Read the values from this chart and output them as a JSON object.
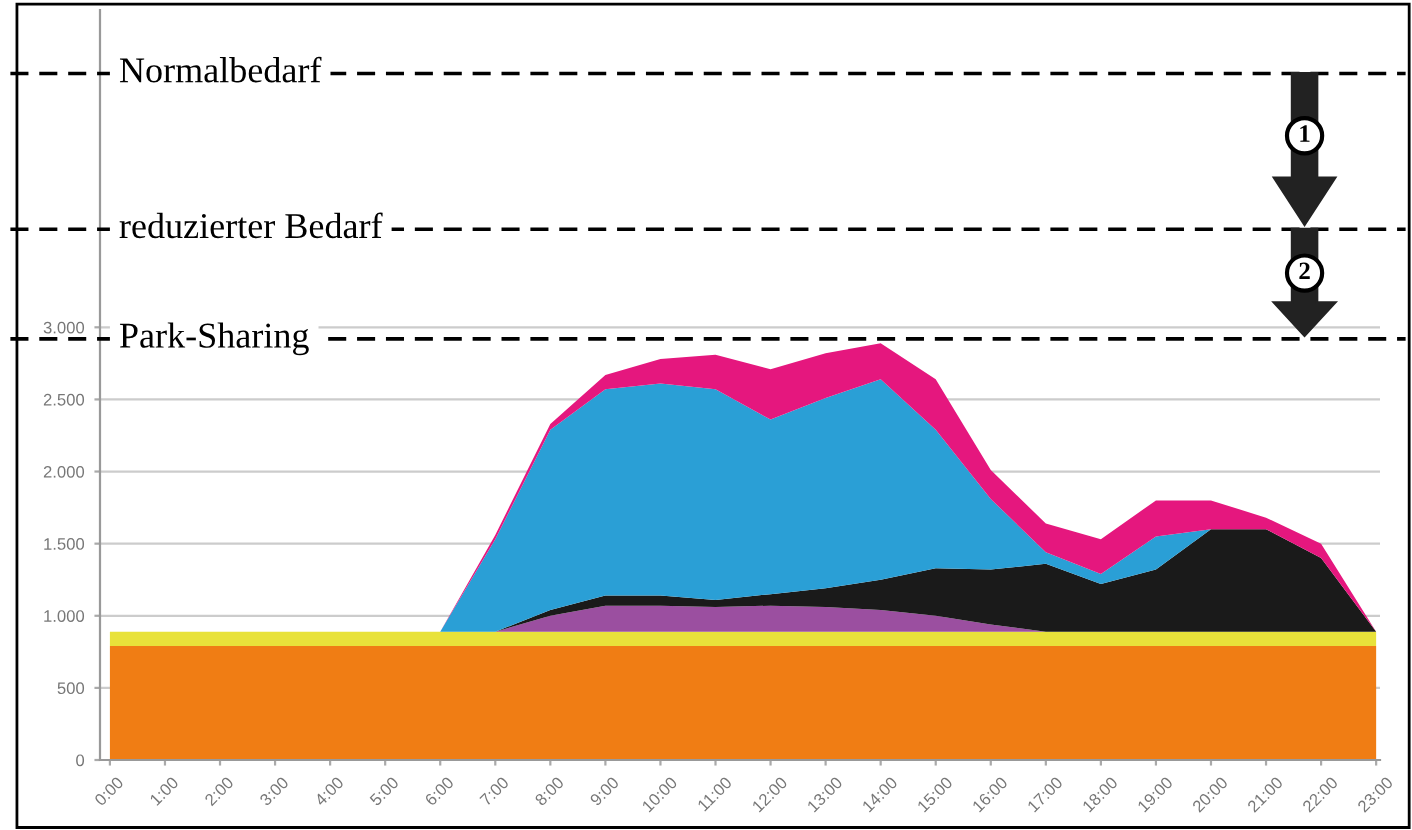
{
  "chart_data": {
    "type": "area",
    "stacked": true,
    "categories": [
      "0:00",
      "1:00",
      "2:00",
      "3:00",
      "4:00",
      "5:00",
      "6:00",
      "7:00",
      "8:00",
      "9:00",
      "10:00",
      "11:00",
      "12:00",
      "13:00",
      "14:00",
      "15:00",
      "16:00",
      "17:00",
      "18:00",
      "19:00",
      "20:00",
      "21:00",
      "22:00",
      "23:00"
    ],
    "series": [
      {
        "color": "#f07d14",
        "values": [
          790,
          790,
          790,
          790,
          790,
          790,
          790,
          790,
          790,
          790,
          790,
          790,
          790,
          790,
          790,
          790,
          790,
          790,
          790,
          790,
          790,
          790,
          790,
          790
        ]
      },
      {
        "color": "#e8e23a",
        "values": [
          100,
          100,
          100,
          100,
          100,
          100,
          100,
          100,
          100,
          100,
          100,
          100,
          100,
          100,
          100,
          100,
          100,
          100,
          100,
          100,
          100,
          100,
          100,
          100
        ]
      },
      {
        "color": "#9b4fa0",
        "values": [
          0,
          0,
          0,
          0,
          0,
          0,
          0,
          0,
          110,
          180,
          180,
          170,
          180,
          170,
          150,
          110,
          50,
          0,
          0,
          0,
          0,
          0,
          0,
          0
        ]
      },
      {
        "color": "#1a1a1a",
        "values": [
          0,
          0,
          0,
          0,
          0,
          0,
          0,
          0,
          40,
          70,
          70,
          50,
          80,
          130,
          210,
          330,
          380,
          470,
          330,
          430,
          710,
          710,
          510,
          0
        ]
      },
      {
        "color": "#2a9fd6",
        "values": [
          0,
          0,
          0,
          0,
          0,
          0,
          0,
          640,
          1250,
          1430,
          1470,
          1460,
          1210,
          1320,
          1390,
          960,
          490,
          80,
          70,
          230,
          0,
          0,
          0,
          0
        ]
      },
      {
        "color": "#e5177e",
        "values": [
          0,
          0,
          0,
          0,
          0,
          0,
          0,
          30,
          40,
          100,
          170,
          240,
          350,
          310,
          250,
          350,
          200,
          200,
          240,
          250,
          200,
          80,
          100,
          0
        ]
      }
    ],
    "ylim": [
      0,
      5200
    ],
    "yticks": [
      0,
      500,
      {
        "value": 1000,
        "label": "1.000"
      },
      {
        "value": 1500,
        "label": "1.500"
      },
      {
        "value": 2000,
        "label": "2.000"
      },
      {
        "value": 2500,
        "label": "2.500"
      },
      {
        "value": 3000,
        "label": "3.000"
      }
    ],
    "grid": "y",
    "ref_lines": [
      {
        "axis": "y",
        "value": 4760,
        "label": "Normalbedarf",
        "color": "#000000",
        "line_style": "dashed"
      },
      {
        "axis": "y",
        "value": 3680,
        "label": "reduzierter Bedarf",
        "color": "#000000",
        "line_style": "dashed"
      },
      {
        "axis": "y",
        "value": 2920,
        "label": "Park-Sharing",
        "color": "#000000",
        "line_style": "dashed"
      }
    ],
    "annotations": [
      "1",
      "2"
    ]
  }
}
